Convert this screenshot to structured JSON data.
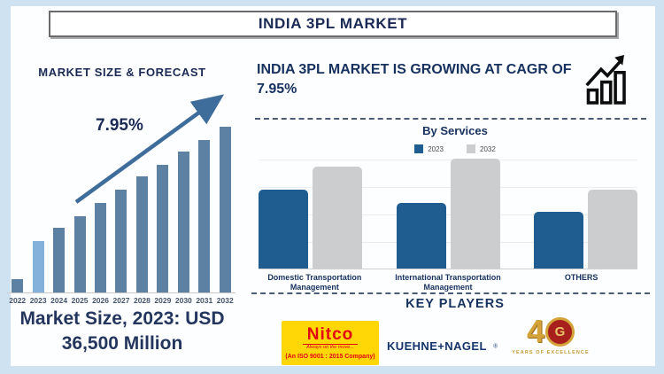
{
  "header": {
    "title": "INDIA 3PL MARKET"
  },
  "left_panel": {
    "title": "MARKET SIZE & FORECAST",
    "cagr_label": "7.95%",
    "market_size_line1": "Market Size, 2023: USD",
    "market_size_line2": "36,500 Million"
  },
  "right_panel": {
    "headline": "INDIA 3PL MARKET IS GROWING AT CAGR OF 7.95%",
    "key_players_title": "KEY PLAYERS",
    "logos": {
      "nitco": {
        "name": "Nitco",
        "tagline": "Always on the move...",
        "subtext": "(An ISO 9001 : 2015 Company)"
      },
      "kuehne_nagel": {
        "name": "KUEHNE+NAGEL"
      },
      "forty_years": {
        "numeral": "4",
        "emblem_letter": "G",
        "subtext": "YEARS OF EXCELLENCE"
      }
    }
  },
  "chart_data": [
    {
      "id": "market-size-forecast",
      "type": "bar",
      "title": "MARKET SIZE & FORECAST",
      "categories": [
        "2022",
        "2023",
        "2024",
        "2025",
        "2026",
        "2027",
        "2028",
        "2029",
        "2030",
        "2031",
        "2032"
      ],
      "values": [
        8,
        31,
        39,
        46,
        54,
        62,
        70,
        77,
        85,
        92,
        100
      ],
      "values_unit": "relative bar height, % of tallest bar (y-axis unlabeled in source)",
      "highlight_category": "2023",
      "bar_color": "#5d81a2",
      "highlight_color": "#83b1dc",
      "annotations": [
        "7.95% CAGR trend arrow",
        "Market Size, 2023: USD 36,500 Million"
      ],
      "xlabel": "",
      "ylabel": "",
      "grid": false,
      "legend_position": "none"
    },
    {
      "id": "by-services",
      "type": "bar",
      "title": "By Services",
      "categories": [
        "Domestic Transportation Management",
        "International Transportation Management",
        "OTHERS"
      ],
      "series": [
        {
          "name": "2023",
          "color": "#1f5c8f",
          "values": [
            72,
            60,
            52
          ]
        },
        {
          "name": "2032",
          "color": "#cbcdce",
          "values": [
            93,
            100,
            72
          ]
        }
      ],
      "values_unit": "relative bar height, % of tallest bar (y-axis unlabeled in source)",
      "xlabel": "",
      "ylabel": "",
      "grid": true,
      "legend_position": "top"
    }
  ]
}
